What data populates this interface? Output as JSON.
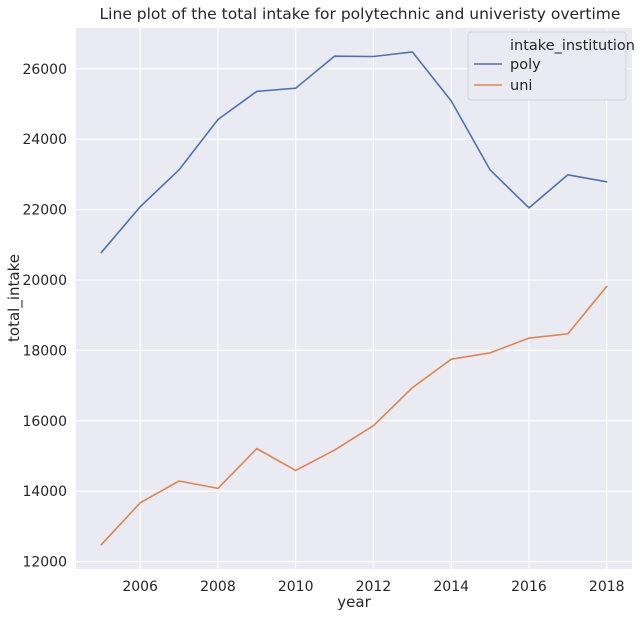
{
  "chart_data": {
    "type": "line",
    "title": "Line plot of the total intake for polytechnic and univeristy overtime",
    "xlabel": "year",
    "ylabel": "total_intake",
    "x": [
      2005,
      2006,
      2007,
      2008,
      2009,
      2010,
      2011,
      2012,
      2013,
      2014,
      2015,
      2016,
      2017,
      2018
    ],
    "series": [
      {
        "name": "poly",
        "color": "#4c72b0",
        "values": [
          20780,
          22080,
          23130,
          24560,
          25360,
          25450,
          26360,
          26350,
          26480,
          25090,
          23130,
          22050,
          22990,
          22790
        ]
      },
      {
        "name": "uni",
        "color": "#dd8452",
        "values": [
          12480,
          13670,
          14290,
          14080,
          15210,
          14590,
          15170,
          15860,
          16940,
          17750,
          17930,
          18350,
          18470,
          19820
        ]
      }
    ],
    "xlim": [
      2004.35,
      2018.65
    ],
    "ylim": [
      11790,
      27160
    ],
    "xticks": [
      2006,
      2008,
      2010,
      2012,
      2014,
      2016,
      2018
    ],
    "yticks": [
      12000,
      14000,
      16000,
      18000,
      20000,
      22000,
      24000,
      26000
    ],
    "grid": true,
    "background": "#eaeaf2",
    "legend": {
      "title": "intake_institution",
      "placement": "top-right"
    }
  }
}
